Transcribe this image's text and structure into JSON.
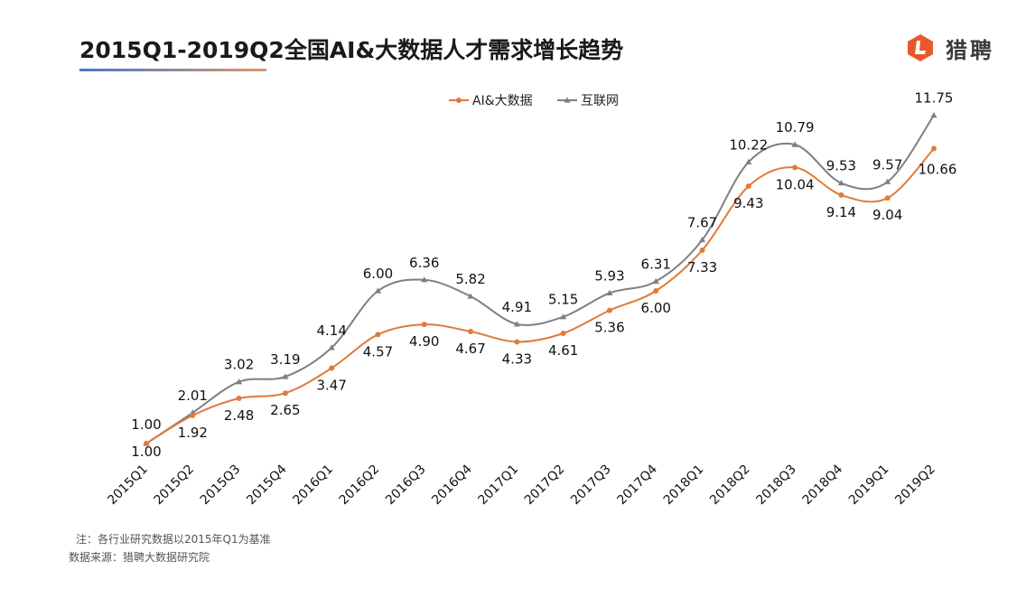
{
  "header": {
    "title": "2015Q1-2019Q2全国AI&大数据人才需求增长趋势",
    "brand": "猎聘",
    "brand_color": "#e8582b",
    "logo_icon": "liepin-logo-icon"
  },
  "footer": {
    "note": "注：各行业研究数据以2015年Q1为基准",
    "source": "数据来源：猎聘大数据研究院"
  },
  "chart_data": {
    "type": "line",
    "title": "2015Q1-2019Q2全国AI&大数据人才需求增长趋势",
    "xlabel": "",
    "ylabel": "",
    "categories": [
      "2015Q1",
      "2015Q2",
      "2015Q3",
      "2015Q4",
      "2016Q1",
      "2016Q2",
      "2016Q3",
      "2016Q4",
      "2017Q1",
      "2017Q2",
      "2017Q3",
      "2017Q4",
      "2018Q1",
      "2018Q2",
      "2018Q3",
      "2018Q4",
      "2019Q1",
      "2019Q2"
    ],
    "series": [
      {
        "name": "AI&大数据",
        "color": "#e07b39",
        "marker": "circle",
        "values": [
          1.0,
          1.92,
          2.48,
          2.65,
          3.47,
          4.57,
          4.9,
          4.67,
          4.33,
          4.61,
          5.36,
          6.0,
          7.33,
          9.43,
          10.04,
          9.14,
          9.04,
          10.66
        ]
      },
      {
        "name": "互联网",
        "color": "#7f7f7f",
        "marker": "triangle",
        "values": [
          1.0,
          2.01,
          3.02,
          3.19,
          4.14,
          6.0,
          6.36,
          5.82,
          4.91,
          5.15,
          5.93,
          6.31,
          7.67,
          10.22,
          10.79,
          9.53,
          9.57,
          11.75
        ]
      }
    ],
    "legend": "top-center",
    "grid": false,
    "smooth": true
  }
}
